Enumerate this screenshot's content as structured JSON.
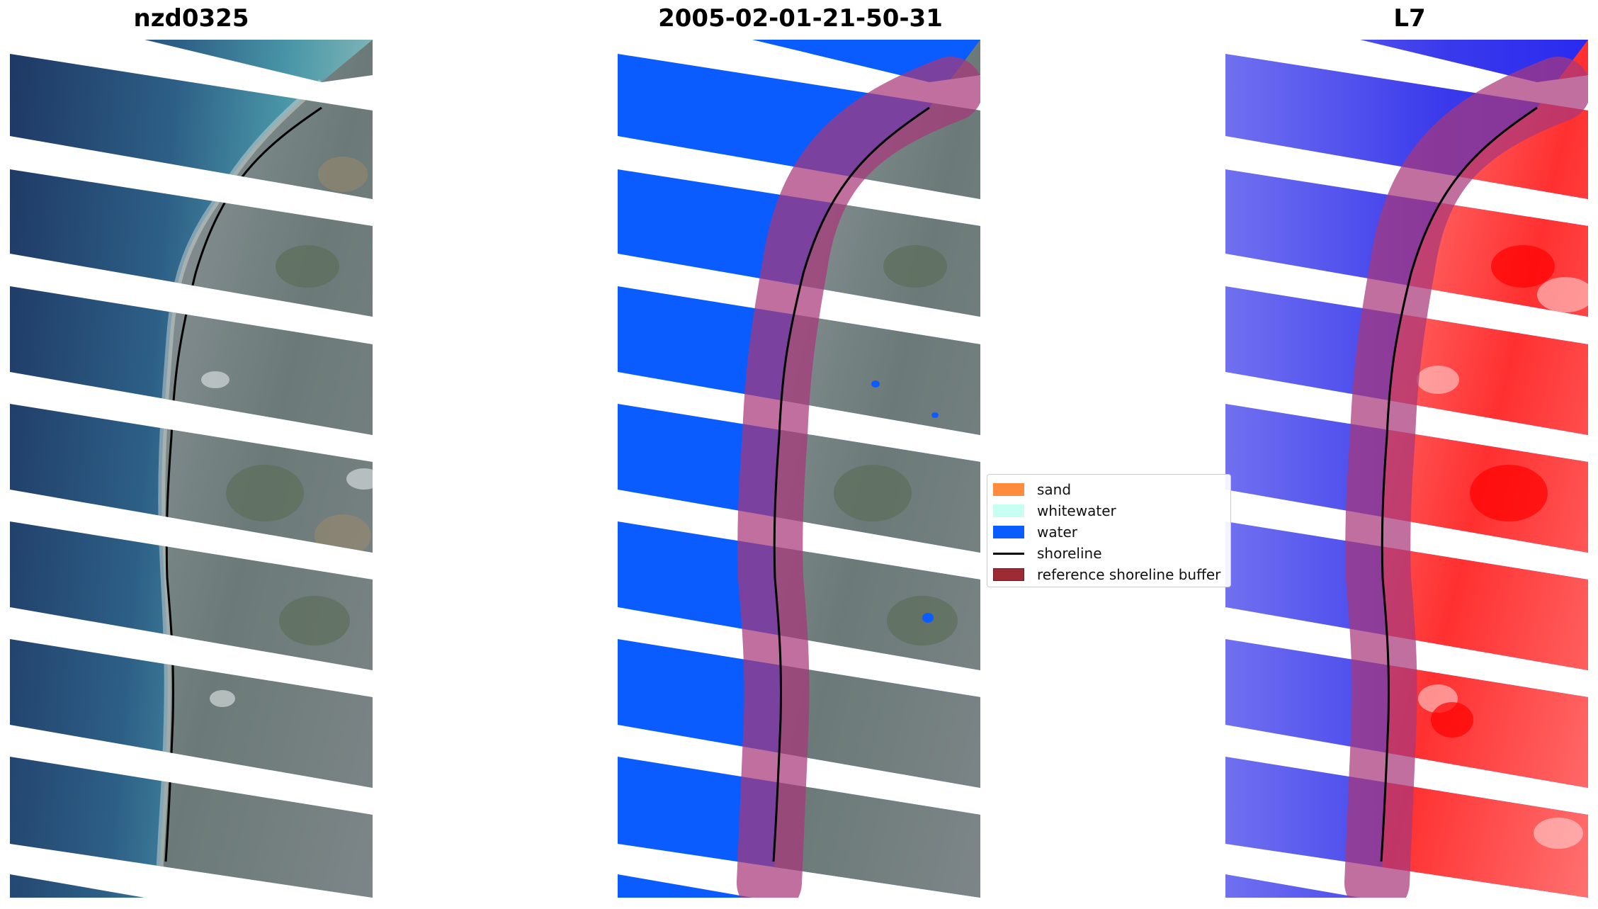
{
  "panels": [
    {
      "title": "nzd0325",
      "kind": "rgb"
    },
    {
      "title": "2005-02-01-21-50-31",
      "kind": "classified"
    },
    {
      "title": "L7",
      "kind": "index"
    }
  ],
  "legend": {
    "items": [
      {
        "label": "sand",
        "color": "#ff8c3c",
        "shape": "patch"
      },
      {
        "label": "whitewater",
        "color": "#c8fff4",
        "shape": "patch"
      },
      {
        "label": "water",
        "color": "#0a5cff",
        "shape": "patch"
      },
      {
        "label": "shoreline",
        "color": "#000000",
        "shape": "line"
      },
      {
        "label": "reference shoreline buffer",
        "color": "#9c2b36",
        "shape": "patch"
      }
    ]
  },
  "colors": {
    "ocean_deep": "#21406b",
    "ocean_shallow": "#3e86a0",
    "land": "#79828a",
    "water_class": "#0a5cff",
    "buffer_fill": "#a8387a",
    "index_water": "#3535ee",
    "index_land": "#ff3a3a"
  }
}
